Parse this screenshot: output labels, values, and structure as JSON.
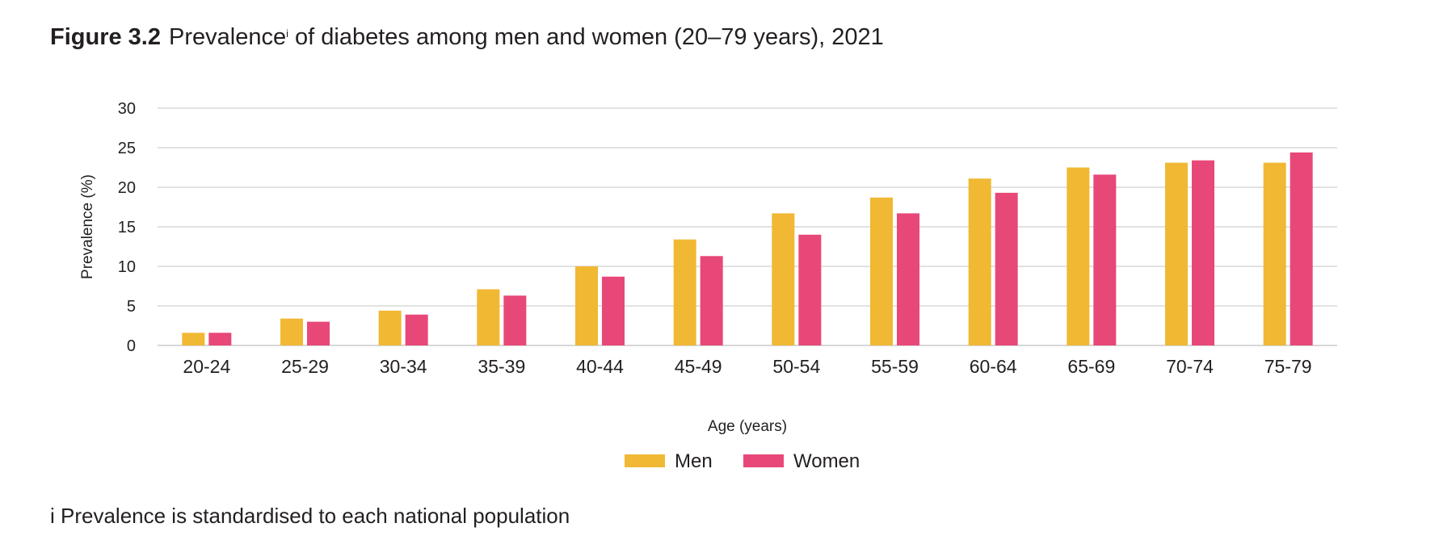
{
  "header": {
    "figure_label": "Figure 3.2",
    "title_main": "Prevalence",
    "title_sup": "i",
    "title_rest": " of diabetes among men and women (20–79 years), 2021"
  },
  "footnote": "i Prevalence is standardised to each national population",
  "colors": {
    "men": "#f0b833",
    "women": "#e84878",
    "grid": "#d0d0d0"
  },
  "chart_data": {
    "type": "bar",
    "categories": [
      "20-24",
      "25-29",
      "30-34",
      "35-39",
      "40-44",
      "45-49",
      "50-54",
      "55-59",
      "60-64",
      "65-69",
      "70-74",
      "75-79"
    ],
    "series": [
      {
        "name": "Men",
        "values": [
          1.6,
          3.4,
          4.4,
          7.1,
          10.0,
          13.4,
          16.7,
          18.7,
          21.1,
          22.5,
          23.1,
          23.1
        ]
      },
      {
        "name": "Women",
        "values": [
          1.6,
          3.0,
          3.9,
          6.3,
          8.7,
          11.3,
          14.0,
          16.7,
          19.3,
          21.6,
          23.4,
          24.4
        ]
      }
    ],
    "xlabel": "Age (years)",
    "ylabel": "Prevalence (%)",
    "ylim": [
      0,
      30
    ],
    "yticks": [
      0,
      5,
      10,
      15,
      20,
      25,
      30
    ],
    "grid": true,
    "legend_position": "bottom-center"
  }
}
